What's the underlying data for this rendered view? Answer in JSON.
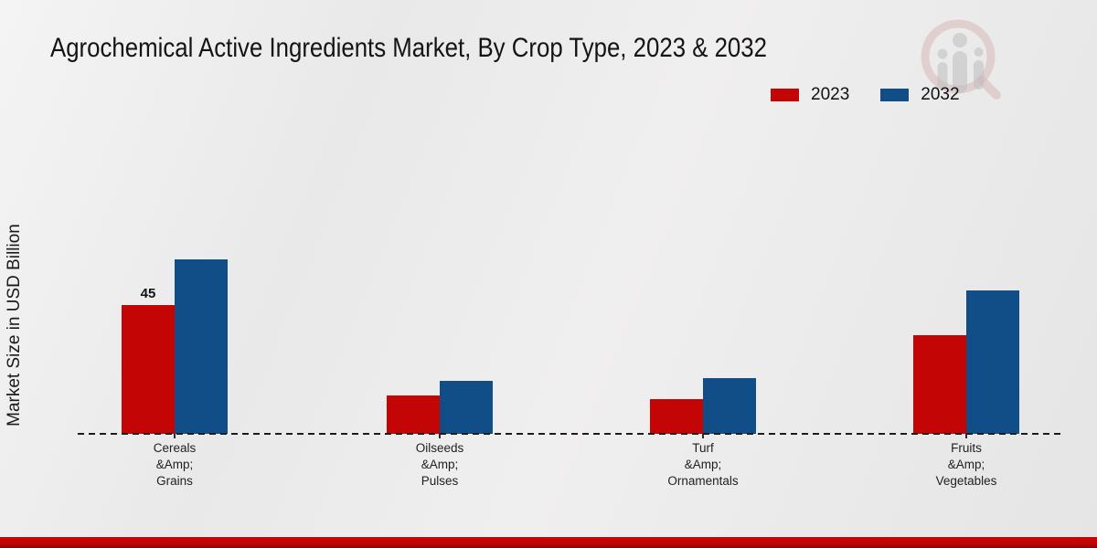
{
  "title": "Agrochemical Active Ingredients Market, By Crop Type, 2023 & 2032",
  "y_axis_label": "Market Size in USD Billion",
  "legend": {
    "items": [
      {
        "label": "2023",
        "color": "#c40506"
      },
      {
        "label": "2032",
        "color": "#114d87"
      }
    ],
    "position": "top-right"
  },
  "colors": {
    "series_2023": "#c40506",
    "series_2032": "#114d87",
    "footer_band": "#c00405",
    "background": "#ebebeb",
    "axis": "#1c1c1c"
  },
  "chart_data": {
    "type": "bar",
    "title": "Agrochemical Active Ingredients Market, By Crop Type, 2023 & 2032",
    "ylabel": "Market Size in USD Billion",
    "xlabel": "",
    "categories": [
      [
        "Cereals",
        "&Amp;",
        "Grains"
      ],
      [
        "Oilseeds",
        "&Amp;",
        "Pulses"
      ],
      [
        "Turf",
        "&Amp;",
        "Ornamentals"
      ],
      [
        "Fruits",
        "&Amp;",
        "Vegetables"
      ]
    ],
    "series": [
      {
        "name": "2023",
        "color": "#c40506",
        "values": [
          45,
          13.5,
          12,
          34.5
        ]
      },
      {
        "name": "2032",
        "color": "#114d87",
        "values": [
          61,
          18.5,
          19.5,
          50
        ]
      }
    ],
    "bar_labels": [
      {
        "series": "2023",
        "category_index": 0,
        "text": "45"
      }
    ],
    "ylim": [
      0,
      65
    ],
    "grid": false,
    "baseline": "dashed",
    "legend_position": "top-right"
  },
  "watermark": {
    "name": "market-research-logo"
  }
}
